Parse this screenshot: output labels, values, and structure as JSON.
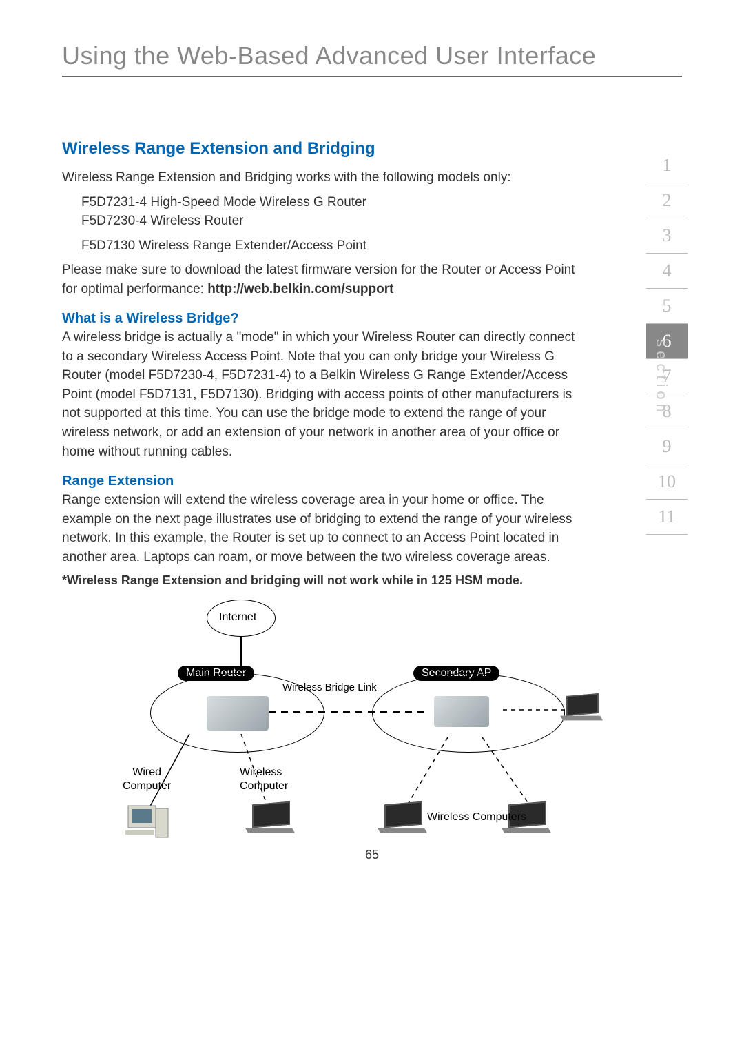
{
  "header": {
    "title": "Using the Web-Based Advanced User Interface"
  },
  "section_nav": {
    "label": "section",
    "items": [
      "1",
      "2",
      "3",
      "4",
      "5",
      "6",
      "7",
      "8",
      "9",
      "10",
      "11"
    ],
    "active_index": 5,
    "color_inactive": "#bbbbbb",
    "color_active_bg": "#888888",
    "color_active_text": "#ffffff"
  },
  "content": {
    "h1": "Wireless Range Extension and Bridging",
    "p1": "Wireless Range Extension and Bridging works with the following models only:",
    "models_line1": "F5D7231-4 High-Speed Mode Wireless G Router",
    "models_line2": "F5D7230-4 Wireless Router",
    "models_line3": "F5D7130 Wireless Range Extender/Access Point",
    "p2a": "Please make sure to download the latest firmware version for the Router or Access Point for optimal performance: ",
    "p2_url": "http://web.belkin.com/support",
    "h2": "What is a Wireless Bridge?",
    "p3": "A wireless bridge is actually a \"mode\" in which your Wireless Router can directly connect to a secondary Wireless Access Point. Note that you can only bridge your Wireless G Router (model F5D7230-4, F5D7231-4) to a Belkin Wireless G Range Extender/Access Point (model F5D7131, F5D7130). Bridging with access points of other manufacturers is not supported at this time. You can use the bridge mode to extend the range of your wireless network, or add an extension of your network in another area of your office or home without running cables.",
    "h3": "Range Extension",
    "p4": "Range extension will extend the wireless coverage area in your home or office. The example on the next page illustrates use of bridging to extend the range of your wireless network. In this example, the Router is set up to connect to an Access Point located in another area. Laptops can roam, or move between the two wireless coverage areas.",
    "note": "*Wireless Range Extension and bridging will not work while in 125 HSM mode."
  },
  "diagram": {
    "type": "network",
    "internet_label": "Internet",
    "main_router_label": "Main Router",
    "secondary_ap_label": "Secondary AP",
    "bridge_link_label": "Wireless Bridge Link",
    "wired_label": "Wired Computer",
    "wireless_label": "Wireless Computer",
    "wireless_computers_label": "Wireless Computers",
    "colors": {
      "line": "#000000",
      "node_bg": "#000000",
      "node_text": "#ffffff"
    }
  },
  "page_number": "65"
}
